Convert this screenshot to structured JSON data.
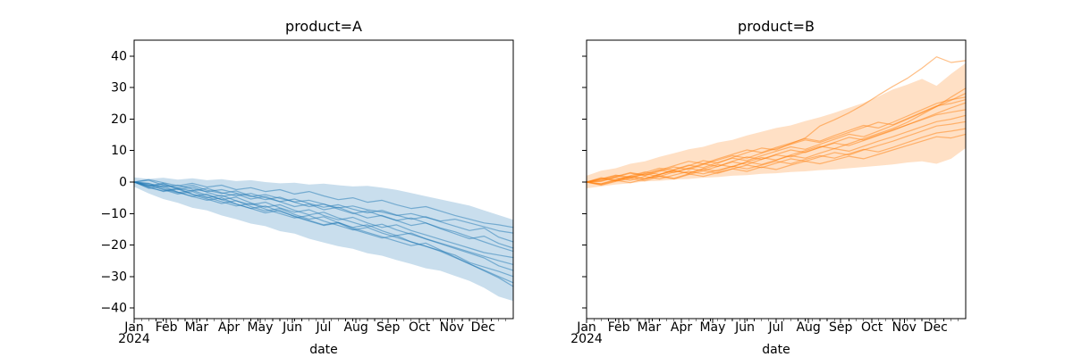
{
  "figure": {
    "background": "#ffffff",
    "text_color": "#000000",
    "spine_color": "#000000"
  },
  "chart_data": [
    {
      "type": "line",
      "title": "product=A",
      "xlabel": "date",
      "ylabel": "",
      "year_label": "2024",
      "color": "#1f77b4",
      "band_opacity": 0.24,
      "line_opacity": 0.5,
      "legend": "none",
      "x_months": [
        "Jan",
        "Feb",
        "Mar",
        "Apr",
        "May",
        "Jun",
        "Jul",
        "Aug",
        "Sep",
        "Oct",
        "Nov",
        "Dec"
      ],
      "month_start_days": [
        0,
        31,
        60,
        91,
        121,
        152,
        182,
        213,
        244,
        274,
        305,
        335
      ],
      "x_range_days": [
        0,
        364
      ],
      "minor_tick_interval_days": 7,
      "y_ticks": [
        -40,
        -30,
        -20,
        -10,
        0,
        10,
        20,
        30,
        40
      ],
      "y_tick_labels": [
        "−40",
        "−30",
        "−20",
        "−10",
        "0",
        "10",
        "20",
        "30",
        "40"
      ],
      "show_y_tick_labels": true,
      "ylim": [
        -43.4,
        45.1
      ],
      "x_weeks": [
        0,
        2,
        4,
        6,
        8,
        10,
        12,
        14,
        16,
        18,
        20,
        22,
        24,
        26,
        28,
        30,
        32,
        34,
        36,
        38,
        40,
        42,
        44,
        46,
        48,
        50,
        52
      ],
      "band": {
        "upper": [
          1.5,
          1.0,
          1.4,
          0.8,
          1.2,
          0.6,
          0.9,
          0.3,
          0.6,
          0.0,
          -0.4,
          -0.2,
          -0.8,
          -0.5,
          -1.0,
          -1.4,
          -1.2,
          -1.8,
          -2.5,
          -3.5,
          -4.5,
          -5.5,
          -6.5,
          -7.5,
          -9.0,
          -10.5,
          -12.0
        ],
        "lower": [
          -1.5,
          -3.6,
          -5.4,
          -6.6,
          -8.2,
          -9.0,
          -10.6,
          -11.8,
          -13.2,
          -14.0,
          -15.6,
          -16.4,
          -18.0,
          -19.2,
          -20.4,
          -21.2,
          -22.6,
          -23.4,
          -24.8,
          -26.0,
          -27.4,
          -28.2,
          -29.8,
          -31.4,
          -33.6,
          -36.4,
          -37.8
        ]
      },
      "series": [
        {
          "values": [
            0,
            -0.5,
            -1.5,
            -1.0,
            -2.2,
            -3.0,
            -2.4,
            -3.5,
            -4.6,
            -4.0,
            -5.2,
            -6.3,
            -5.8,
            -7.0,
            -8.2,
            -7.6,
            -8.8,
            -9.5,
            -10.6,
            -10.0,
            -11.2,
            -12.4,
            -11.8,
            -13.0,
            -14.2,
            -15.5,
            -16.2
          ]
        },
        {
          "values": [
            0,
            -1.2,
            -0.4,
            -2.0,
            -2.8,
            -2.0,
            -3.4,
            -4.4,
            -3.6,
            -5.0,
            -6.2,
            -5.4,
            -6.8,
            -8.0,
            -7.2,
            -8.6,
            -9.8,
            -9.0,
            -10.5,
            -11.8,
            -11.0,
            -12.6,
            -14.0,
            -15.4,
            -14.6,
            -17.5,
            -19.0
          ]
        },
        {
          "values": [
            0,
            0.6,
            -1.0,
            -1.8,
            -1.0,
            -2.6,
            -3.6,
            -2.8,
            -4.4,
            -5.6,
            -4.8,
            -6.4,
            -7.8,
            -7.0,
            -8.6,
            -10.0,
            -9.2,
            -10.8,
            -12.2,
            -11.4,
            -13.0,
            -14.6,
            -15.8,
            -17.4,
            -19.0,
            -20.6,
            -22.0
          ]
        },
        {
          "values": [
            0,
            -1.8,
            -2.8,
            -2.0,
            -3.8,
            -5.0,
            -4.2,
            -6.0,
            -7.2,
            -6.4,
            -8.2,
            -9.6,
            -8.8,
            -10.6,
            -12.0,
            -11.2,
            -13.0,
            -14.4,
            -13.6,
            -15.4,
            -16.8,
            -18.2,
            -19.6,
            -21.0,
            -22.4,
            -23.2,
            -24.0
          ]
        },
        {
          "values": [
            0,
            -0.8,
            -2.2,
            -3.4,
            -2.6,
            -4.2,
            -5.6,
            -4.8,
            -6.6,
            -8.0,
            -7.2,
            -9.0,
            -10.4,
            -9.6,
            -11.4,
            -12.8,
            -14.2,
            -13.4,
            -15.2,
            -16.6,
            -18.0,
            -19.4,
            -20.8,
            -22.2,
            -23.6,
            -25.0,
            -26.2
          ]
        },
        {
          "values": [
            0,
            -1.5,
            -3.0,
            -2.2,
            -4.0,
            -5.4,
            -6.8,
            -5.9,
            -7.8,
            -9.2,
            -8.4,
            -10.3,
            -11.8,
            -11.0,
            -12.9,
            -14.4,
            -13.6,
            -15.5,
            -17.0,
            -16.2,
            -18.1,
            -19.6,
            -21.1,
            -22.6,
            -24.1,
            -26.6,
            -28.1
          ]
        },
        {
          "values": [
            0,
            -1.0,
            -2.4,
            -3.8,
            -3.0,
            -4.8,
            -6.2,
            -7.6,
            -6.8,
            -8.6,
            -10.0,
            -11.4,
            -10.6,
            -12.4,
            -13.8,
            -15.2,
            -14.4,
            -16.2,
            -17.6,
            -19.0,
            -20.4,
            -21.8,
            -23.2,
            -25.6,
            -27.0,
            -28.4,
            -30.0
          ]
        },
        {
          "values": [
            0,
            -2.0,
            -1.2,
            -3.2,
            -4.6,
            -5.8,
            -5.0,
            -7.0,
            -8.4,
            -9.8,
            -9.0,
            -11.0,
            -12.4,
            -13.8,
            -13.0,
            -15.0,
            -16.4,
            -17.8,
            -17.0,
            -19.0,
            -20.4,
            -22.0,
            -24.0,
            -26.0,
            -28.0,
            -30.0,
            -32.0
          ]
        },
        {
          "values": [
            0,
            -0.4,
            -1.8,
            -3.2,
            -4.6,
            -3.8,
            -5.6,
            -7.0,
            -8.4,
            -7.6,
            -9.4,
            -10.8,
            -12.2,
            -13.6,
            -12.8,
            -14.6,
            -16.0,
            -17.4,
            -18.8,
            -20.2,
            -19.4,
            -21.6,
            -23.8,
            -26.0,
            -28.2,
            -30.4,
            -33.2
          ]
        },
        {
          "values": [
            0,
            0.8,
            -0.2,
            -1.2,
            -0.4,
            -1.6,
            -1.0,
            -2.4,
            -1.8,
            -3.0,
            -2.4,
            -3.8,
            -3.0,
            -4.4,
            -5.6,
            -5.0,
            -6.4,
            -5.8,
            -7.2,
            -8.4,
            -7.8,
            -9.2,
            -10.6,
            -11.8,
            -13.0,
            -13.6,
            -14.4
          ]
        },
        {
          "values": [
            0,
            -1.4,
            -0.6,
            -2.4,
            -1.6,
            -3.2,
            -4.6,
            -3.8,
            -5.4,
            -4.6,
            -6.2,
            -7.8,
            -7.0,
            -8.8,
            -8.0,
            -9.8,
            -11.4,
            -10.6,
            -12.2,
            -13.8,
            -13.0,
            -14.8,
            -16.4,
            -18.0,
            -17.2,
            -19.5,
            -21.0
          ]
        }
      ]
    },
    {
      "type": "line",
      "title": "product=B",
      "xlabel": "date",
      "ylabel": "",
      "year_label": "2024",
      "color": "#ff7f0e",
      "band_opacity": 0.24,
      "line_opacity": 0.5,
      "legend": "none",
      "x_months": [
        "Jan",
        "Feb",
        "Mar",
        "Apr",
        "May",
        "Jun",
        "Jul",
        "Aug",
        "Sep",
        "Oct",
        "Nov",
        "Dec"
      ],
      "month_start_days": [
        0,
        31,
        60,
        91,
        121,
        152,
        182,
        213,
        244,
        274,
        305,
        335
      ],
      "x_range_days": [
        0,
        364
      ],
      "minor_tick_interval_days": 7,
      "y_ticks": [
        -40,
        -30,
        -20,
        -10,
        0,
        10,
        20,
        30,
        40
      ],
      "y_tick_labels": [
        "−40",
        "−30",
        "−20",
        "−10",
        "0",
        "10",
        "20",
        "30",
        "40"
      ],
      "show_y_tick_labels": false,
      "ylim": [
        -43.4,
        45.1
      ],
      "x_weeks": [
        0,
        2,
        4,
        6,
        8,
        10,
        12,
        14,
        16,
        18,
        20,
        22,
        24,
        26,
        28,
        30,
        32,
        34,
        36,
        38,
        40,
        42,
        44,
        46,
        48,
        50,
        52
      ],
      "band": {
        "upper": [
          2.0,
          3.6,
          4.4,
          5.8,
          6.6,
          8.0,
          9.2,
          10.4,
          11.2,
          12.6,
          13.4,
          14.8,
          16.0,
          17.2,
          18.0,
          19.4,
          20.6,
          22.0,
          23.6,
          25.2,
          27.2,
          29.4,
          31.0,
          32.8,
          30.6,
          34.4,
          37.8
        ],
        "lower": [
          -2.0,
          -1.4,
          -0.8,
          -0.4,
          0.2,
          0.4,
          0.8,
          1.0,
          1.4,
          1.6,
          2.0,
          2.2,
          2.6,
          2.8,
          3.2,
          3.4,
          3.8,
          4.0,
          4.4,
          4.8,
          5.2,
          5.6,
          6.2,
          6.6,
          5.8,
          7.4,
          10.8
        ]
      },
      "series": [
        {
          "values": [
            0,
            1.0,
            2.2,
            1.6,
            3.0,
            4.4,
            3.8,
            5.2,
            6.8,
            6.0,
            7.8,
            9.4,
            10.8,
            10.2,
            12.2,
            14.0,
            17.8,
            19.8,
            22.0,
            24.6,
            27.6,
            30.4,
            33.0,
            36.2,
            39.8,
            38.0,
            38.6
          ]
        },
        {
          "values": [
            0,
            -0.5,
            0.8,
            1.8,
            1.0,
            2.4,
            3.6,
            2.8,
            4.2,
            5.6,
            4.8,
            6.4,
            7.8,
            7.0,
            8.6,
            10.0,
            11.4,
            10.6,
            12.2,
            13.8,
            15.4,
            17.0,
            19.0,
            21.5,
            24.0,
            27.0,
            29.8
          ]
        },
        {
          "values": [
            0,
            1.2,
            0.4,
            2.0,
            3.2,
            2.4,
            4.0,
            5.4,
            4.6,
            6.2,
            7.6,
            6.8,
            8.4,
            9.8,
            11.2,
            10.4,
            12.0,
            13.6,
            15.2,
            14.4,
            16.2,
            18.0,
            20.0,
            22.0,
            24.0,
            26.0,
            28.2
          ]
        },
        {
          "values": [
            0,
            0.6,
            1.8,
            3.0,
            2.2,
            3.8,
            5.2,
            6.6,
            5.8,
            7.4,
            8.8,
            10.2,
            9.4,
            11.0,
            12.4,
            13.8,
            13.0,
            14.8,
            16.4,
            18.0,
            17.2,
            19.0,
            21.0,
            23.0,
            25.0,
            26.2,
            27.0
          ]
        },
        {
          "values": [
            0,
            -0.8,
            0.4,
            1.4,
            2.6,
            1.8,
            3.2,
            4.4,
            3.6,
            5.0,
            6.4,
            5.6,
            7.2,
            8.6,
            8.0,
            9.6,
            11.0,
            12.4,
            11.6,
            13.2,
            14.8,
            16.4,
            18.2,
            20.0,
            21.8,
            23.6,
            25.2
          ]
        },
        {
          "values": [
            0,
            0.9,
            2.0,
            1.2,
            2.6,
            3.8,
            3.0,
            4.4,
            5.8,
            5.0,
            6.6,
            8.0,
            7.2,
            8.8,
            10.2,
            9.4,
            11.0,
            12.6,
            14.2,
            13.4,
            15.0,
            16.6,
            18.2,
            19.8,
            21.4,
            22.2,
            23.0
          ]
        },
        {
          "values": [
            0,
            1.4,
            0.6,
            1.8,
            1.0,
            2.4,
            3.6,
            2.8,
            4.2,
            3.4,
            5.0,
            6.4,
            5.6,
            7.0,
            8.4,
            7.6,
            9.2,
            10.6,
            9.8,
            11.4,
            13.0,
            14.4,
            16.0,
            17.6,
            19.2,
            20.0,
            21.2
          ]
        },
        {
          "values": [
            0,
            -1.0,
            0.2,
            1.2,
            0.4,
            1.8,
            1.0,
            2.4,
            3.6,
            2.8,
            4.2,
            5.4,
            4.6,
            6.0,
            7.4,
            6.6,
            8.0,
            9.4,
            8.6,
            10.2,
            11.6,
            13.0,
            14.6,
            16.2,
            17.8,
            18.4,
            19.2
          ]
        },
        {
          "values": [
            0,
            0.4,
            1.4,
            0.6,
            1.8,
            1.0,
            2.2,
            3.4,
            2.6,
            3.8,
            5.0,
            4.2,
            5.4,
            6.6,
            5.8,
            7.2,
            8.4,
            7.6,
            9.0,
            10.4,
            9.6,
            11.0,
            12.6,
            14.2,
            15.6,
            16.2,
            17.0
          ]
        },
        {
          "values": [
            0,
            -0.6,
            0.6,
            -0.2,
            1.0,
            2.0,
            1.2,
            2.6,
            1.8,
            3.0,
            4.2,
            3.4,
            4.8,
            4.0,
            5.4,
            6.6,
            5.8,
            7.0,
            8.2,
            7.4,
            8.8,
            10.2,
            11.6,
            13.0,
            14.4,
            14.0,
            15.2
          ]
        },
        {
          "values": [
            0,
            0.2,
            1.6,
            2.8,
            2.0,
            3.4,
            4.8,
            4.0,
            5.6,
            7.0,
            8.4,
            7.6,
            9.2,
            10.6,
            12.0,
            13.4,
            12.6,
            14.2,
            15.8,
            17.4,
            19.0,
            18.2,
            20.2,
            22.2,
            24.2,
            25.0,
            26.2
          ]
        }
      ]
    }
  ]
}
